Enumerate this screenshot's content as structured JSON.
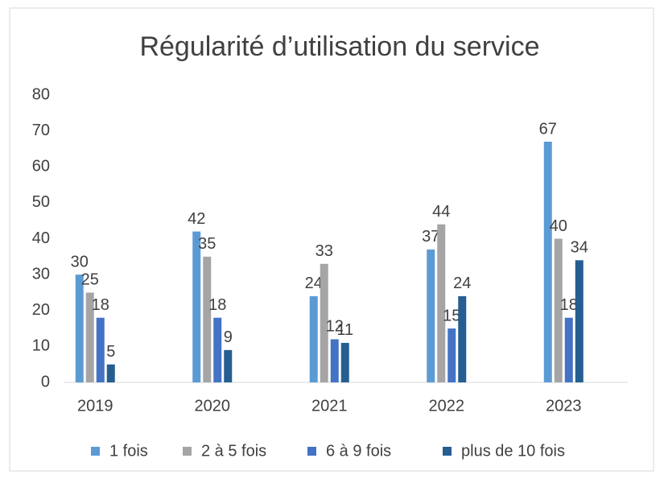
{
  "chart_data": {
    "type": "bar",
    "title": "Régularité d’utilisation du service",
    "categories": [
      "2019",
      "2020",
      "2021",
      "2022",
      "2023"
    ],
    "series": [
      {
        "name": "1 fois",
        "color": "#5b9bd5",
        "values": [
          30,
          42,
          24,
          37,
          67
        ]
      },
      {
        "name": "2 à 5 fois",
        "color": "#a5a5a5",
        "values": [
          25,
          35,
          33,
          44,
          40
        ]
      },
      {
        "name": "6 à 9 fois",
        "color": "#4472c4",
        "values": [
          18,
          18,
          12,
          15,
          18
        ]
      },
      {
        "name": "plus de 10 fois",
        "color": "#255e91",
        "values": [
          5,
          9,
          11,
          24,
          34
        ]
      }
    ],
    "ylim": [
      0,
      80
    ],
    "yticks": [
      0,
      10,
      20,
      30,
      40,
      50,
      60,
      70,
      80
    ],
    "grid": false,
    "legend": "bottom"
  }
}
